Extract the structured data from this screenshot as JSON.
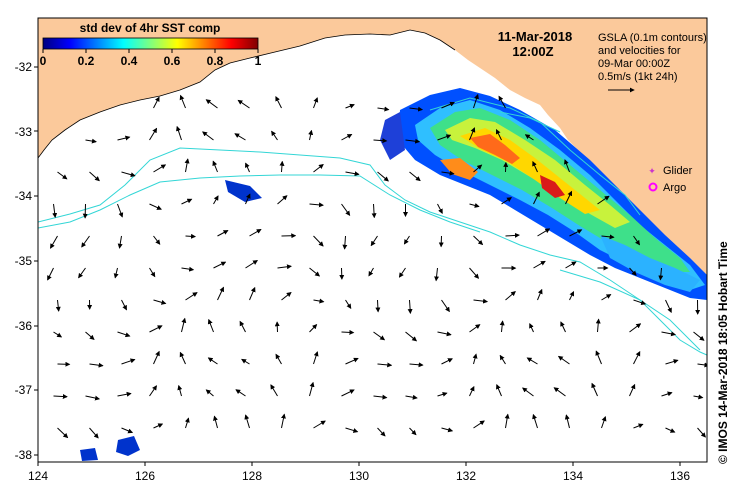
{
  "map": {
    "title_date": "11-Mar-2018",
    "title_time": "12:00Z",
    "lon_ticks": [
      "124",
      "126",
      "128",
      "130",
      "132",
      "134",
      "136"
    ],
    "lat_ticks": [
      "-32",
      "-33",
      "-34",
      "-35",
      "-36",
      "-37",
      "-38"
    ],
    "lon_range": [
      124,
      136.5
    ],
    "lat_range": [
      -38.1,
      -31.4
    ]
  },
  "colorbar": {
    "title": "std dev of 4hr SST comp",
    "ticks": [
      "0",
      "0.2",
      "0.4",
      "0.6",
      "0.8",
      "1"
    ],
    "range": [
      0,
      1
    ],
    "colors": [
      "#00007f",
      "#0000ff",
      "#007fff",
      "#00ffff",
      "#7fff7f",
      "#ffff00",
      "#ff7f00",
      "#ff0000",
      "#7f0000"
    ]
  },
  "legend": {
    "gsla_line1": "GSLA (0.1m contours)",
    "gsla_line2": "and velocities for",
    "gsla_line3": "09-Mar 00:00Z",
    "scale_label": "0.5m/s (1kt 24h)",
    "glider_label": "Glider",
    "argo_label": "Argo",
    "glider_color": "#cc33cc",
    "argo_color": "#ff00ff"
  },
  "credit": "© IMOS 14-Mar-2018 18:05 Hobart Time",
  "colors": {
    "land": "#fbc99b",
    "contour": "#33d6d6",
    "vector": "#000000"
  }
}
